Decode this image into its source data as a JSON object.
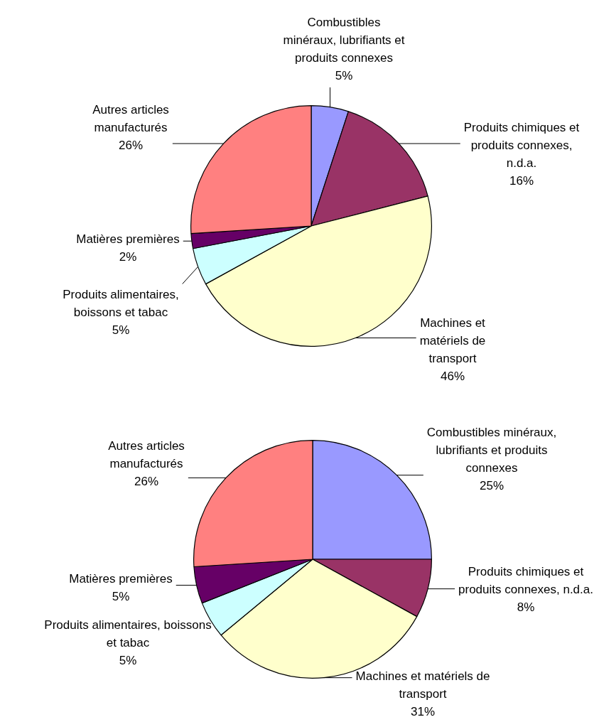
{
  "chart_data": [
    {
      "type": "pie",
      "categories": [
        "Combustibles minéraux, lubrifiants et produits connexes",
        "Produits chimiques et produits connexes, n.d.a.",
        "Machines et matériels de transport",
        "Produits alimentaires, boissons et tabac",
        "Matières premières",
        "Autres articles manufacturés"
      ],
      "values": [
        5,
        16,
        46,
        5,
        2,
        26
      ],
      "value_labels": [
        "5%",
        "16%",
        "46%",
        "5%",
        "2%",
        "26%"
      ],
      "colors": [
        "#9999ff",
        "#993366",
        "#ffffcc",
        "#ccffff",
        "#660066",
        "#ff8080"
      ],
      "legend": false
    },
    {
      "type": "pie",
      "categories": [
        "Combustibles minéraux, lubrifiants et produits connexes",
        "Produits chimiques et produits connexes, n.d.a.",
        "Machines et matériels de transport",
        "Produits alimentaires, boissons et tabac",
        "Matières premières",
        "Autres articles manufacturés"
      ],
      "values": [
        25,
        8,
        31,
        5,
        5,
        26
      ],
      "value_labels": [
        "25%",
        "8%",
        "31%",
        "5%",
        "5%",
        "26%"
      ],
      "colors": [
        "#9999ff",
        "#993366",
        "#ffffcc",
        "#ccffff",
        "#660066",
        "#ff8080"
      ],
      "legend": false
    }
  ]
}
